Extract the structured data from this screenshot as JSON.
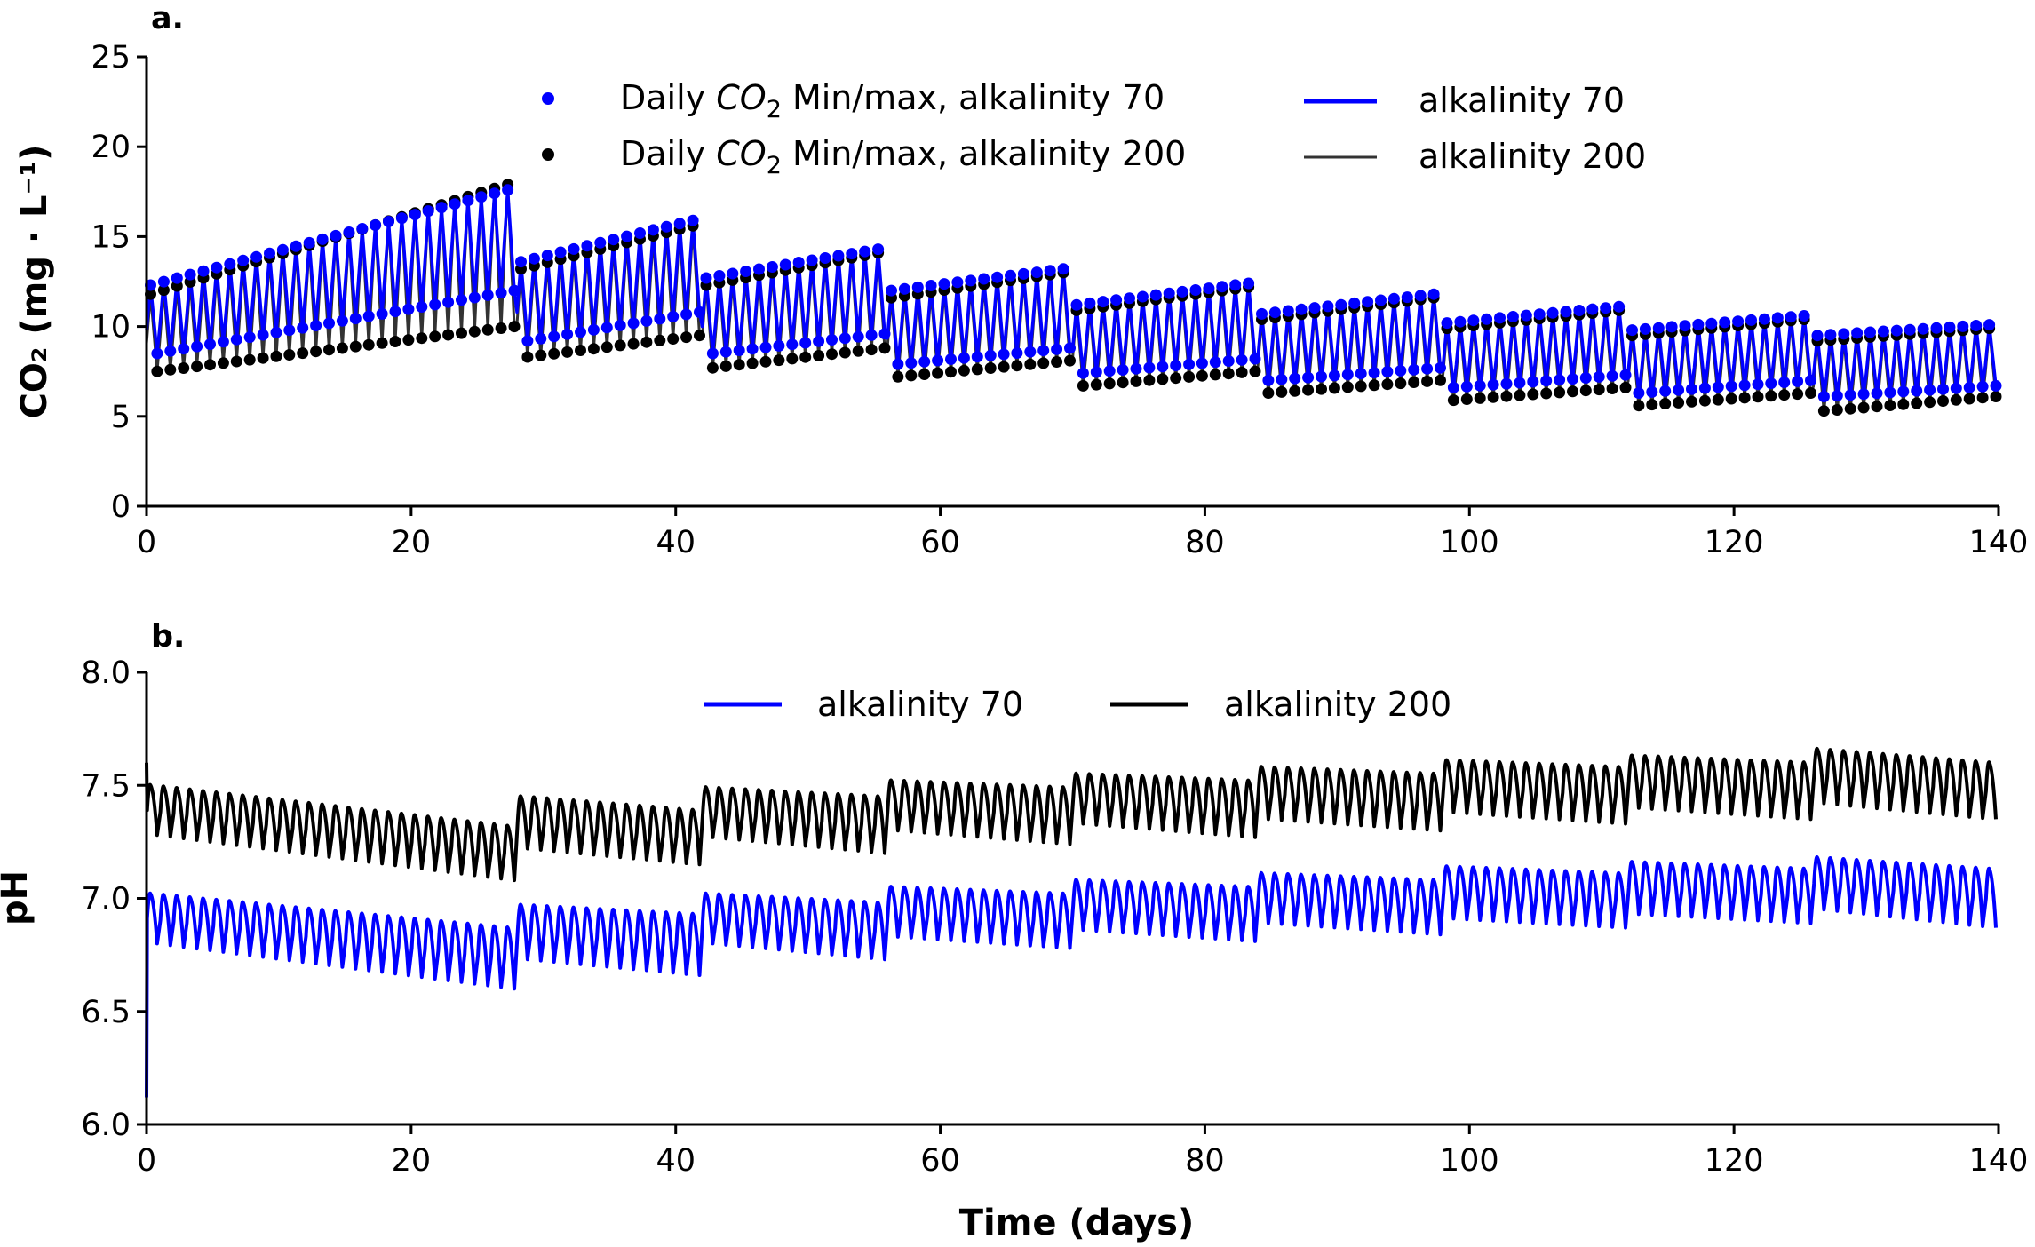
{
  "chart_data": [
    {
      "panel": "a.",
      "type": "line",
      "ylabel": "CO₂ (mg · L⁻¹)",
      "xlim": [
        0,
        140
      ],
      "ylim": [
        0,
        25
      ],
      "xticks": [
        "0",
        "20",
        "40",
        "60",
        "80",
        "100",
        "120",
        "140"
      ],
      "yticks": [
        "0",
        "5",
        "10",
        "15",
        "20",
        "25"
      ],
      "grid": false,
      "legend_placement": "top-center",
      "legend": [
        {
          "label_prefix": "Daily ",
          "label_italic": "CO",
          "label_sub": "2",
          "label_suffix": " Min/max, alkalinity 70",
          "marker": "dot",
          "color": "#0000ff"
        },
        {
          "label_prefix": "Daily ",
          "label_italic": "CO",
          "label_sub": "2",
          "label_suffix": " Min/max, alkalinity 200",
          "marker": "dot",
          "color": "#000000"
        },
        {
          "label": "alkalinity 70",
          "marker": "line",
          "color": "#0000ff"
        },
        {
          "label": "alkalinity 200",
          "marker": "line",
          "color": "#333333"
        }
      ],
      "series": [
        {
          "name": "alkalinity 70",
          "color": "#0000ff",
          "periods": [
            {
              "start": 0,
              "end": 28,
              "max_start": 12.3,
              "max_end": 17.6,
              "min_start": 8.5,
              "min_end": 12.0
            },
            {
              "start": 28,
              "end": 42,
              "max_start": 13.6,
              "max_end": 15.9,
              "min_start": 9.2,
              "min_end": 10.8
            },
            {
              "start": 42,
              "end": 56,
              "max_start": 12.7,
              "max_end": 14.3,
              "min_start": 8.5,
              "min_end": 9.6
            },
            {
              "start": 56,
              "end": 70,
              "max_start": 12.0,
              "max_end": 13.2,
              "min_start": 7.9,
              "min_end": 8.8
            },
            {
              "start": 70,
              "end": 84,
              "max_start": 11.2,
              "max_end": 12.4,
              "min_start": 7.4,
              "min_end": 8.2
            },
            {
              "start": 84,
              "end": 98,
              "max_start": 10.7,
              "max_end": 11.8,
              "min_start": 7.0,
              "min_end": 7.7
            },
            {
              "start": 98,
              "end": 112,
              "max_start": 10.2,
              "max_end": 11.1,
              "min_start": 6.6,
              "min_end": 7.3
            },
            {
              "start": 112,
              "end": 126,
              "max_start": 9.8,
              "max_end": 10.6,
              "min_start": 6.3,
              "min_end": 7.0
            },
            {
              "start": 126,
              "end": 140,
              "max_start": 9.5,
              "max_end": 10.1,
              "min_start": 6.1,
              "min_end": 6.7
            }
          ]
        },
        {
          "name": "alkalinity 200",
          "color": "#000000",
          "periods": [
            {
              "start": 0,
              "end": 28,
              "max_start": 11.8,
              "max_end": 17.9,
              "min_start": 7.5,
              "min_end": 10.0
            },
            {
              "start": 28,
              "end": 42,
              "max_start": 13.2,
              "max_end": 15.6,
              "min_start": 8.3,
              "min_end": 9.5
            },
            {
              "start": 42,
              "end": 56,
              "max_start": 12.3,
              "max_end": 14.1,
              "min_start": 7.7,
              "min_end": 8.8
            },
            {
              "start": 56,
              "end": 70,
              "max_start": 11.6,
              "max_end": 13.0,
              "min_start": 7.2,
              "min_end": 8.1
            },
            {
              "start": 70,
              "end": 84,
              "max_start": 10.9,
              "max_end": 12.2,
              "min_start": 6.7,
              "min_end": 7.5
            },
            {
              "start": 84,
              "end": 98,
              "max_start": 10.4,
              "max_end": 11.6,
              "min_start": 6.3,
              "min_end": 7.0
            },
            {
              "start": 98,
              "end": 112,
              "max_start": 9.9,
              "max_end": 10.9,
              "min_start": 5.9,
              "min_end": 6.6
            },
            {
              "start": 112,
              "end": 126,
              "max_start": 9.5,
              "max_end": 10.4,
              "min_start": 5.6,
              "min_end": 6.3
            },
            {
              "start": 126,
              "end": 140,
              "max_start": 9.2,
              "max_end": 9.9,
              "min_start": 5.3,
              "min_end": 6.1
            }
          ]
        }
      ]
    },
    {
      "panel": "b.",
      "type": "line",
      "ylabel": "pH",
      "xlabel": "Time (days)",
      "xlim": [
        0,
        140
      ],
      "ylim": [
        6.0,
        8.0
      ],
      "xticks": [
        "0",
        "20",
        "40",
        "60",
        "80",
        "100",
        "120",
        "140"
      ],
      "yticks": [
        "6.0",
        "6.5",
        "7.0",
        "7.5",
        "8.0"
      ],
      "grid": false,
      "legend_placement": "top-center",
      "legend": [
        {
          "label": "alkalinity 70",
          "color": "#0000ff"
        },
        {
          "label": "alkalinity 200",
          "color": "#000000"
        }
      ],
      "initial_drop": {
        "alkalinity 70": 6.12,
        "alkalinity 200": 7.6
      },
      "series": [
        {
          "name": "alkalinity 70",
          "color": "#0000ff",
          "periods": [
            {
              "start": 0,
              "end": 28,
              "high_start": 7.02,
              "high_end": 6.87,
              "low_start": 6.8,
              "low_end": 6.6
            },
            {
              "start": 28,
              "end": 42,
              "high_start": 6.97,
              "high_end": 6.93,
              "low_start": 6.73,
              "low_end": 6.66
            },
            {
              "start": 42,
              "end": 56,
              "high_start": 7.02,
              "high_end": 6.98,
              "low_start": 6.8,
              "low_end": 6.73
            },
            {
              "start": 56,
              "end": 70,
              "high_start": 7.05,
              "high_end": 7.02,
              "low_start": 6.83,
              "low_end": 6.78
            },
            {
              "start": 70,
              "end": 84,
              "high_start": 7.08,
              "high_end": 7.05,
              "low_start": 6.86,
              "low_end": 6.81
            },
            {
              "start": 84,
              "end": 98,
              "high_start": 7.11,
              "high_end": 7.08,
              "low_start": 6.89,
              "low_end": 6.84
            },
            {
              "start": 98,
              "end": 112,
              "high_start": 7.14,
              "high_end": 7.11,
              "low_start": 6.91,
              "low_end": 6.87
            },
            {
              "start": 112,
              "end": 126,
              "high_start": 7.16,
              "high_end": 7.13,
              "low_start": 6.93,
              "low_end": 6.89
            },
            {
              "start": 126,
              "end": 140,
              "high_start": 7.18,
              "high_end": 7.13,
              "low_start": 6.95,
              "low_end": 6.87
            }
          ]
        },
        {
          "name": "alkalinity 200",
          "color": "#000000",
          "periods": [
            {
              "start": 0,
              "end": 28,
              "high_start": 7.5,
              "high_end": 7.32,
              "low_start": 7.28,
              "low_end": 7.08
            },
            {
              "start": 28,
              "end": 42,
              "high_start": 7.45,
              "high_end": 7.39,
              "low_start": 7.22,
              "low_end": 7.15
            },
            {
              "start": 42,
              "end": 56,
              "high_start": 7.49,
              "high_end": 7.45,
              "low_start": 7.27,
              "low_end": 7.2
            },
            {
              "start": 56,
              "end": 70,
              "high_start": 7.52,
              "high_end": 7.49,
              "low_start": 7.3,
              "low_end": 7.24
            },
            {
              "start": 70,
              "end": 84,
              "high_start": 7.55,
              "high_end": 7.52,
              "low_start": 7.33,
              "low_end": 7.27
            },
            {
              "start": 84,
              "end": 98,
              "high_start": 7.58,
              "high_end": 7.55,
              "low_start": 7.35,
              "low_end": 7.3
            },
            {
              "start": 98,
              "end": 112,
              "high_start": 7.61,
              "high_end": 7.58,
              "low_start": 7.38,
              "low_end": 7.33
            },
            {
              "start": 112,
              "end": 126,
              "high_start": 7.63,
              "high_end": 7.6,
              "low_start": 7.4,
              "low_end": 7.35
            },
            {
              "start": 126,
              "end": 140,
              "high_start": 7.66,
              "high_end": 7.6,
              "low_start": 7.42,
              "low_end": 7.35
            }
          ]
        }
      ]
    }
  ]
}
